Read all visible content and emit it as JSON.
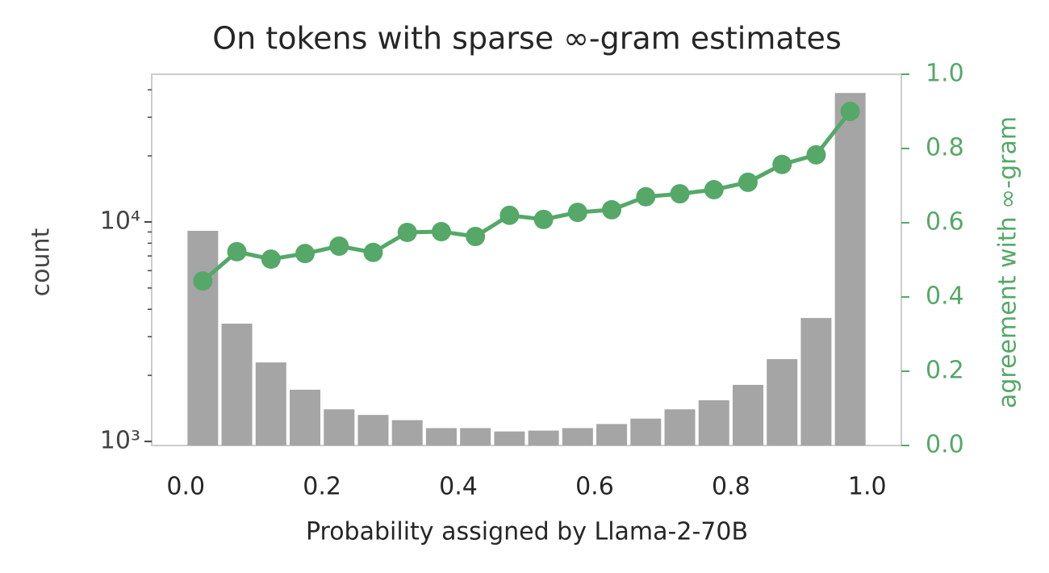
{
  "chart_data": {
    "type": "histogram",
    "title": "On tokens with sparse ∞-gram estimates",
    "xlabel": "Probability assigned by Llama-2-70B",
    "ylabel": "count",
    "y2label": "agreement with ∞-gram",
    "bins": [
      0,
      0.05,
      0.1,
      0.15,
      0.2,
      0.25,
      0.3,
      0.35,
      0.4,
      0.45,
      0.5,
      0.55,
      0.6,
      0.65,
      0.7,
      0.75,
      0.8,
      0.85,
      0.9,
      0.95,
      1.0
    ],
    "values": [
      9110,
      3440,
      2290,
      1720,
      1400,
      1320,
      1250,
      1150,
      1150,
      1110,
      1120,
      1150,
      1200,
      1270,
      1400,
      1540,
      1810,
      2370,
      3650,
      38700
    ],
    "color": "#a5a5a5",
    "line": {
      "type": "line",
      "axis": "y2",
      "color": "#55a868",
      "x": [
        0.025,
        0.075,
        0.125,
        0.175,
        0.225,
        0.275,
        0.325,
        0.375,
        0.425,
        0.475,
        0.525,
        0.575,
        0.625,
        0.675,
        0.725,
        0.775,
        0.825,
        0.875,
        0.925,
        0.975
      ],
      "values": [
        0.443,
        0.522,
        0.502,
        0.517,
        0.537,
        0.52,
        0.574,
        0.576,
        0.563,
        0.62,
        0.609,
        0.628,
        0.635,
        0.67,
        0.678,
        0.689,
        0.709,
        0.757,
        0.783,
        0.9
      ]
    },
    "xlim": [
      -0.05,
      1.05
    ],
    "xticks": [
      {
        "value": 0,
        "label": "0.0"
      },
      {
        "value": 0.2,
        "label": "0.2"
      },
      {
        "value": 0.4,
        "label": "0.4"
      },
      {
        "value": 0.6,
        "label": "0.6"
      },
      {
        "value": 0.8,
        "label": "0.8"
      },
      {
        "value": 1,
        "label": "1.0"
      }
    ],
    "yscale": "log",
    "ylim": [
      958,
      47100
    ],
    "yticks": [
      {
        "value": 1000,
        "label": "10³"
      },
      {
        "value": 10000,
        "label": "10⁴"
      }
    ],
    "yminorticks": [
      2000,
      3000,
      4000,
      5000,
      6000,
      7000,
      8000,
      9000,
      20000,
      30000,
      40000
    ],
    "y2lim": [
      0,
      1
    ],
    "y2ticks": [
      {
        "value": 0,
        "label": "0.0"
      },
      {
        "value": 0.2,
        "label": "0.2"
      },
      {
        "value": 0.4,
        "label": "0.4"
      },
      {
        "value": 0.6,
        "label": "0.6"
      },
      {
        "value": 0.8,
        "label": "0.8"
      },
      {
        "value": 1,
        "label": "1.0"
      }
    ]
  }
}
